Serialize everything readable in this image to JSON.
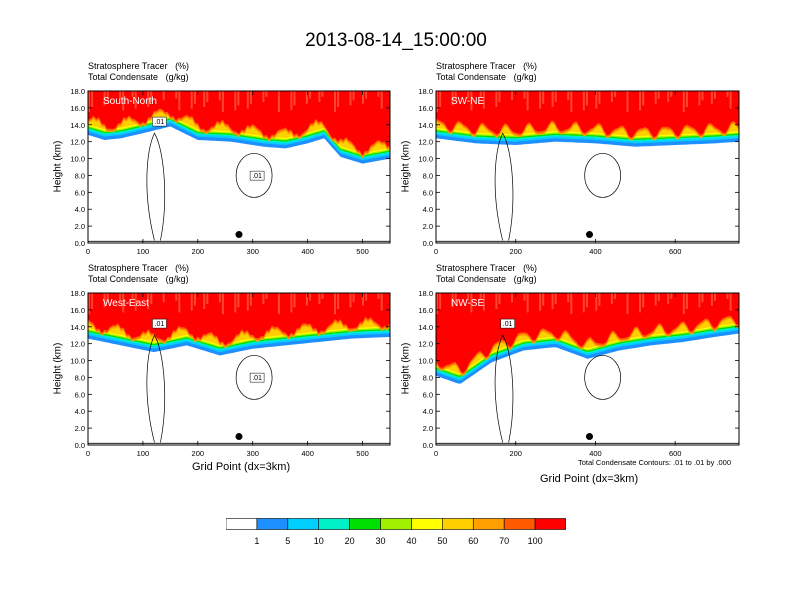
{
  "title": "2013-08-14_15:00:00",
  "colors": {
    "levels": [
      "#ffffff",
      "#1e8fff",
      "#00d0ff",
      "#00f0c8",
      "#00e000",
      "#a0f000",
      "#ffff00",
      "#ffd000",
      "#ffa000",
      "#ff5a00",
      "#ff0000"
    ]
  },
  "colorbar": {
    "labels": [
      "1",
      "5",
      "10",
      "20",
      "30",
      "40",
      "50",
      "60",
      "70",
      "100"
    ]
  },
  "contour_note": "Total Condensate Contours: .01 to .01 by .000",
  "x_axis_title": "Grid Point (dx=3km)",
  "chart_data": [
    {
      "type": "heatmap",
      "panel": "South-North",
      "subtitle_left": "Stratosphere Tracer",
      "subtitle_units": "(%)",
      "subtitle2_left": "Total Condensate",
      "subtitle2_units": "(g/kg)",
      "ylabel": "Height (km)",
      "xlim": [
        0,
        550
      ],
      "ylim": [
        0,
        18
      ],
      "xticks": [
        0,
        100,
        200,
        300,
        400,
        500
      ],
      "yticks": [
        "0.0",
        "2.0",
        "4.0",
        "6.0",
        "8.0",
        "10.0",
        "12.0",
        "14.0",
        "16.0",
        "18.0"
      ],
      "tropopause_km": [
        [
          0,
          13.6
        ],
        [
          30,
          13.0
        ],
        [
          60,
          13.2
        ],
        [
          100,
          13.8
        ],
        [
          150,
          14.6
        ],
        [
          200,
          13.0
        ],
        [
          260,
          12.8
        ],
        [
          320,
          12.2
        ],
        [
          360,
          12.0
        ],
        [
          400,
          12.6
        ],
        [
          430,
          13.2
        ],
        [
          460,
          11.0
        ],
        [
          500,
          10.2
        ],
        [
          550,
          10.8
        ]
      ],
      "contour_labels": [
        ".01",
        ".01"
      ],
      "marker": {
        "x": 275,
        "y_km": 1.0
      }
    },
    {
      "type": "heatmap",
      "panel": "SW-NE",
      "subtitle_left": "Stratosphere Tracer",
      "subtitle_units": "(%)",
      "subtitle2_left": "Total Condensate",
      "subtitle2_units": "(g/kg)",
      "ylabel": "Height (km)",
      "xlim": [
        0,
        760
      ],
      "ylim": [
        0,
        18
      ],
      "xticks": [
        0,
        200,
        400,
        600
      ],
      "yticks": [
        "0.0",
        "2.0",
        "4.0",
        "6.0",
        "8.0",
        "10.0",
        "12.0",
        "14.0",
        "16.0",
        "18.0"
      ],
      "tropopause_km": [
        [
          0,
          13.2
        ],
        [
          100,
          12.6
        ],
        [
          200,
          12.4
        ],
        [
          300,
          12.8
        ],
        [
          400,
          12.6
        ],
        [
          500,
          12.2
        ],
        [
          600,
          12.4
        ],
        [
          700,
          12.6
        ],
        [
          760,
          12.8
        ]
      ],
      "contour_labels": [],
      "marker": {
        "x": 385,
        "y_km": 1.0
      }
    },
    {
      "type": "heatmap",
      "panel": "West-East",
      "subtitle_left": "Stratosphere Tracer",
      "subtitle_units": "(%)",
      "subtitle2_left": "Total Condensate",
      "subtitle2_units": "(g/kg)",
      "ylabel": "Height (km)",
      "xlim": [
        0,
        550
      ],
      "ylim": [
        0,
        18
      ],
      "xticks": [
        0,
        100,
        200,
        300,
        400,
        500
      ],
      "yticks": [
        "0.0",
        "2.0",
        "4.0",
        "6.0",
        "8.0",
        "10.0",
        "12.0",
        "14.0",
        "16.0",
        "18.0"
      ],
      "tropopause_km": [
        [
          0,
          13.4
        ],
        [
          60,
          12.6
        ],
        [
          120,
          11.8
        ],
        [
          180,
          12.6
        ],
        [
          240,
          11.4
        ],
        [
          300,
          12.2
        ],
        [
          360,
          12.6
        ],
        [
          420,
          13.0
        ],
        [
          480,
          13.4
        ],
        [
          550,
          13.6
        ]
      ],
      "contour_labels": [
        ".01",
        ".01"
      ],
      "marker": {
        "x": 275,
        "y_km": 1.0
      }
    },
    {
      "type": "heatmap",
      "panel": "NW-SE",
      "subtitle_left": "Stratosphere Tracer",
      "subtitle_units": "(%)",
      "subtitle2_left": "Total Condensate",
      "subtitle2_units": "(g/kg)",
      "ylabel": "Height (km)",
      "xlim": [
        0,
        760
      ],
      "ylim": [
        0,
        18
      ],
      "xticks": [
        0,
        200,
        400,
        600
      ],
      "yticks": [
        "0.0",
        "2.0",
        "4.0",
        "6.0",
        "8.0",
        "10.0",
        "12.0",
        "14.0",
        "16.0",
        "18.0"
      ],
      "tropopause_km": [
        [
          0,
          9.0
        ],
        [
          60,
          8.0
        ],
        [
          140,
          10.6
        ],
        [
          220,
          12.0
        ],
        [
          300,
          12.4
        ],
        [
          380,
          11.0
        ],
        [
          460,
          12.0
        ],
        [
          540,
          12.6
        ],
        [
          620,
          13.0
        ],
        [
          700,
          13.6
        ],
        [
          760,
          14.0
        ]
      ],
      "contour_labels": [
        ".01"
      ],
      "marker": {
        "x": 385,
        "y_km": 1.0
      }
    }
  ]
}
